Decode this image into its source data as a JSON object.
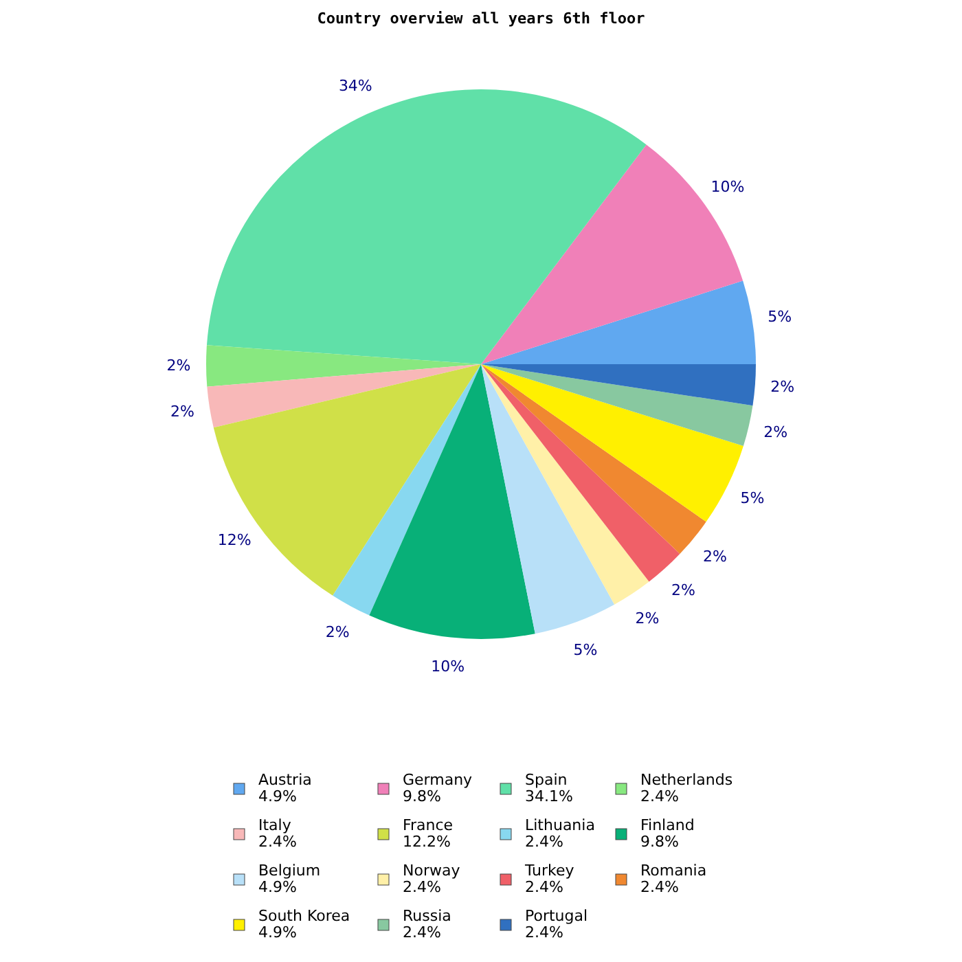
{
  "chart_data": {
    "type": "pie",
    "title": "Country overview all years 6th floor",
    "categories": [
      "Austria",
      "Germany",
      "Spain",
      "Netherlands",
      "Italy",
      "France",
      "Lithuania",
      "Finland",
      "Belgium",
      "Norway",
      "Turkey",
      "Romania",
      "South Korea",
      "Russia",
      "Portugal"
    ],
    "values": [
      4.9,
      9.8,
      34.1,
      2.4,
      2.4,
      12.2,
      2.4,
      9.8,
      4.9,
      2.4,
      2.4,
      2.4,
      4.9,
      2.4,
      2.4
    ],
    "value_labels": [
      "4.9%",
      "9.8%",
      "34.1%",
      "2.4%",
      "2.4%",
      "12.2%",
      "2.4%",
      "9.8%",
      "4.9%",
      "2.4%",
      "2.4%",
      "2.4%",
      "4.9%",
      "2.4%",
      "2.4%"
    ],
    "annotations": [
      {
        "text": "5%",
        "x": "Austria"
      },
      {
        "text": "10%",
        "x": "Germany"
      },
      {
        "text": "34%",
        "x": "Spain"
      },
      {
        "text": "2%",
        "x": "Netherlands"
      },
      {
        "text": "2%",
        "x": "Italy"
      },
      {
        "text": "12%",
        "x": "France"
      },
      {
        "text": "2%",
        "x": "Lithuania"
      },
      {
        "text": "10%",
        "x": "Finland"
      },
      {
        "text": "5%",
        "x": "Belgium"
      },
      {
        "text": "2%",
        "x": "Norway"
      },
      {
        "text": "2%",
        "x": "Turkey"
      },
      {
        "text": "2%",
        "x": "Romania"
      },
      {
        "text": "5%",
        "x": "South Korea"
      },
      {
        "text": "2%",
        "x": "Russia"
      },
      {
        "text": "2%",
        "x": "Portugal"
      }
    ],
    "colors": [
      "#60a8f0",
      "#f080b8",
      "#60e0a8",
      "#88e880",
      "#f8b8b8",
      "#d0e048",
      "#88d8f0",
      "#08b078",
      "#b8e0f8",
      "#fff0a8",
      "#f06068",
      "#f08830",
      "#fff000",
      "#88c8a0",
      "#3070c0"
    ],
    "legend": "bottom"
  }
}
